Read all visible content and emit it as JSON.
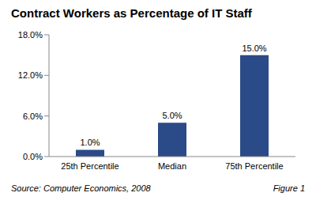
{
  "chart_data": {
    "type": "bar",
    "title": "Contract Workers as Percentage of IT Staff",
    "categories": [
      "25th Percentile",
      "Median",
      "75th Percentile"
    ],
    "values": [
      1.0,
      5.0,
      15.0
    ],
    "value_labels": [
      "1.0%",
      "5.0%",
      "15.0%"
    ],
    "data_labels": true,
    "color": "#2b4a88",
    "ylim": [
      0,
      18
    ],
    "yticks": [
      {
        "value": 0,
        "label": "0.0%"
      },
      {
        "value": 6,
        "label": "6.0%"
      },
      {
        "value": 12,
        "label": "12.0%"
      },
      {
        "value": 18,
        "label": "18.0%"
      }
    ],
    "grid": false,
    "annotations": [
      "Source: Computer Economics, 2008",
      "Figure 1"
    ]
  }
}
